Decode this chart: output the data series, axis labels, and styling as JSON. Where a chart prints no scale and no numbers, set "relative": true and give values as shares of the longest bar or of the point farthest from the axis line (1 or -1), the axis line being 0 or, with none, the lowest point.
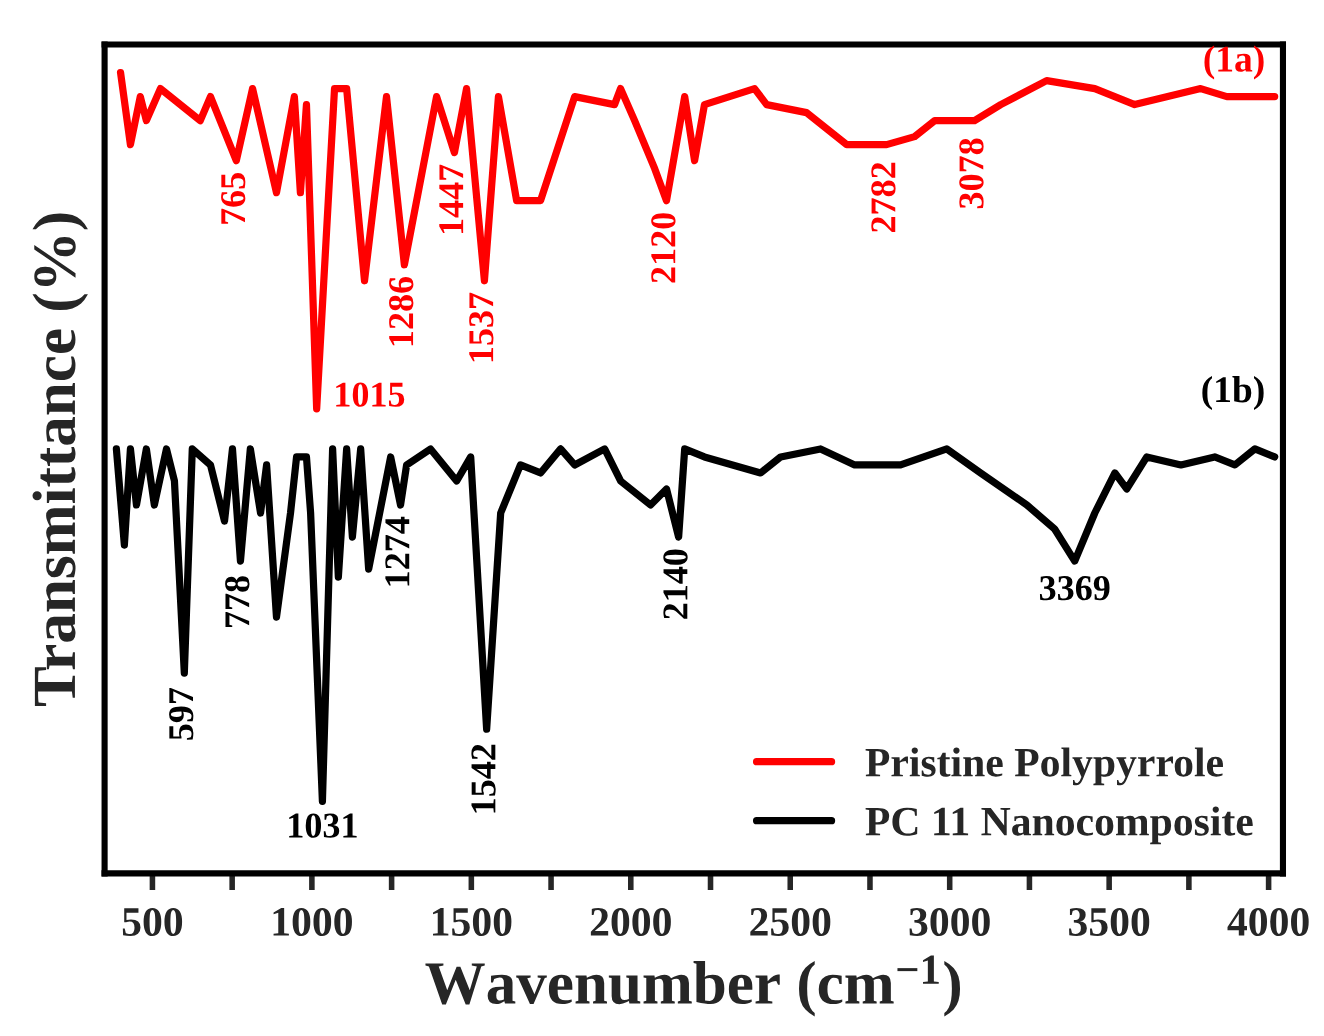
{
  "chart_data": {
    "type": "line",
    "relative": true,
    "xlabel": "Wavenumber (cm$^{−1}$)",
    "ylabel": "Transmittance (%)",
    "xlim": [
      350,
      4045
    ],
    "xticks": [
      500,
      {
        "value": 750,
        "label": null
      },
      1000,
      {
        "value": 1250,
        "label": null
      },
      1500,
      {
        "value": 1750,
        "label": null
      },
      2000,
      {
        "value": 2250,
        "label": null
      },
      2500,
      {
        "value": 2750,
        "label": null
      },
      3000,
      {
        "value": 3250,
        "label": null
      },
      3500,
      {
        "value": 3750,
        "label": null
      },
      4000
    ],
    "tick_labels": "x",
    "grid": false,
    "legend": "bottom right",
    "marker": "none",
    "line_style": "solid",
    "series": [
      {
        "name": "Pristine Polypyrrole",
        "color": "#ff0000",
        "x": [
          400,
          431,
          462,
          481,
          525,
          650,
          682,
          763,
          814,
          889,
          945,
          964,
          983,
          1015,
          1071,
          1109,
          1165,
          1234,
          1290,
          1391,
          1447,
          1485,
          1541,
          1585,
          1642,
          1717,
          1824,
          1949,
          1968,
          2012,
          2075,
          2112,
          2169,
          2200,
          2231,
          2388,
          2426,
          2551,
          2677,
          2802,
          2890,
          2953,
          3078,
          3160,
          3304,
          3455,
          3580,
          3787,
          3869,
          4019
        ],
        "values": [
          1.0,
          0.91,
          0.97,
          0.94,
          0.98,
          0.94,
          0.97,
          0.89,
          0.98,
          0.85,
          0.97,
          0.85,
          0.96,
          0.58,
          0.98,
          0.98,
          0.74,
          0.97,
          0.76,
          0.97,
          0.9,
          0.98,
          0.74,
          0.97,
          0.84,
          0.84,
          0.97,
          0.96,
          0.98,
          0.94,
          0.88,
          0.84,
          0.97,
          0.89,
          0.96,
          0.98,
          0.96,
          0.95,
          0.91,
          0.91,
          0.92,
          0.94,
          0.94,
          0.96,
          0.99,
          0.98,
          0.96,
          0.98,
          0.97,
          0.97
        ]
      },
      {
        "name": "PC 11 Nanocomposite",
        "color": "#000000",
        "x": [
          387,
          412,
          431,
          450,
          481,
          506,
          544,
          569,
          600,
          625,
          682,
          726,
          751,
          776,
          807,
          839,
          858,
          889,
          933,
          952,
          983,
          996,
          1033,
          1065,
          1083,
          1109,
          1127,
          1153,
          1178,
          1247,
          1278,
          1297,
          1372,
          1454,
          1498,
          1548,
          1592,
          1654,
          1717,
          1780,
          1824,
          1918,
          1968,
          2062,
          2112,
          2150,
          2169,
          2231,
          2407,
          2470,
          2595,
          2702,
          2846,
          2991,
          3097,
          3242,
          3329,
          3392,
          3455,
          3518,
          3555,
          3618,
          3725,
          3831,
          3894,
          3957,
          4019
        ],
        "values": [
          0.53,
          0.41,
          0.53,
          0.46,
          0.53,
          0.46,
          0.53,
          0.49,
          0.25,
          0.53,
          0.51,
          0.44,
          0.53,
          0.39,
          0.53,
          0.45,
          0.51,
          0.32,
          0.45,
          0.52,
          0.52,
          0.45,
          0.09,
          0.53,
          0.37,
          0.53,
          0.42,
          0.53,
          0.38,
          0.52,
          0.46,
          0.51,
          0.53,
          0.49,
          0.52,
          0.18,
          0.45,
          0.51,
          0.5,
          0.53,
          0.51,
          0.53,
          0.49,
          0.46,
          0.48,
          0.42,
          0.53,
          0.52,
          0.5,
          0.52,
          0.53,
          0.51,
          0.51,
          0.53,
          0.5,
          0.46,
          0.43,
          0.39,
          0.45,
          0.5,
          0.48,
          0.52,
          0.51,
          0.52,
          0.51,
          0.53,
          0.52
        ]
      }
    ],
    "annotations": [
      {
        "text": "765",
        "x": 763,
        "y": 0.89
      },
      {
        "text": "1015",
        "x": 1015,
        "y": 0.58
      },
      {
        "text": "1286",
        "x": 1290,
        "y": 0.76
      },
      {
        "text": "1447",
        "x": 1447,
        "y": 0.9
      },
      {
        "text": "1537",
        "x": 1541,
        "y": 0.74
      },
      {
        "text": "2120",
        "x": 2112,
        "y": 0.84
      },
      {
        "text": "2782",
        "x": 2802,
        "y": 0.91
      },
      {
        "text": "3078",
        "x": 3078,
        "y": 0.94
      },
      {
        "text": "597",
        "x": 600,
        "y": 0.25
      },
      {
        "text": "778",
        "x": 776,
        "y": 0.39
      },
      {
        "text": "1031",
        "x": 1033,
        "y": 0.09
      },
      {
        "text": "1274",
        "x": 1278,
        "y": 0.46
      },
      {
        "text": "1542",
        "x": 1548,
        "y": 0.18
      },
      {
        "text": "2140",
        "x": 2150,
        "y": 0.42
      },
      {
        "text": "3369",
        "x": 3392,
        "y": 0.39
      },
      "(1a)",
      "(1b)"
    ]
  }
}
